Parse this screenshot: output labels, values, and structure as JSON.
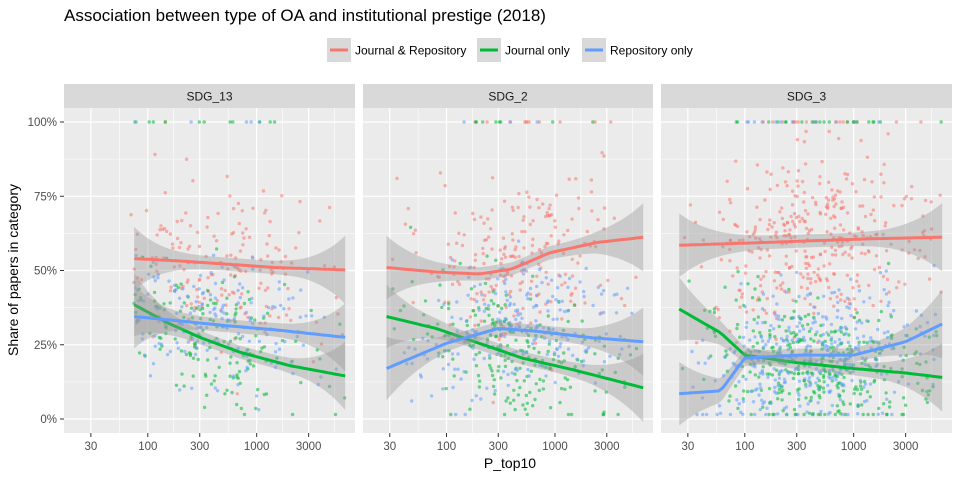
{
  "chart_data": {
    "type": "scatter",
    "title": "Association between type of OA and institutional prestige (2018)",
    "xlabel": "P_top10",
    "ylabel": "Share of papers in category",
    "x_scale": "log10",
    "x_ticks": [
      {
        "value": 30,
        "label": "30"
      },
      {
        "value": 100,
        "label": "100"
      },
      {
        "value": 300,
        "label": "300"
      },
      {
        "value": 1000,
        "label": "1000"
      },
      {
        "value": 3000,
        "label": "3000"
      }
    ],
    "y_ticks": [
      {
        "value": 0,
        "label": "0%"
      },
      {
        "value": 0.25,
        "label": "25%"
      },
      {
        "value": 0.5,
        "label": "50%"
      },
      {
        "value": 0.75,
        "label": "75%"
      },
      {
        "value": 1,
        "label": "100%"
      }
    ],
    "legend_position": "top",
    "grid": true,
    "series": [
      {
        "key": "jr",
        "name": "Journal & Repository",
        "color": "#F8766D"
      },
      {
        "key": "j",
        "name": "Journal only",
        "color": "#00BA38"
      },
      {
        "key": "r",
        "name": "Repository only",
        "color": "#619CFF"
      }
    ],
    "panels": [
      {
        "label": "SDG_13",
        "xlim": [
          17,
          8000
        ],
        "scatter_x_range": [
          70,
          6500
        ],
        "points_per_series": 170,
        "trend": {
          "jr": [
            [
              75,
              0.54
            ],
            [
              200,
              0.532
            ],
            [
              500,
              0.522
            ],
            [
              1500,
              0.51
            ],
            [
              6500,
              0.502
            ]
          ],
          "j": [
            [
              75,
              0.385
            ],
            [
              150,
              0.325
            ],
            [
              300,
              0.275
            ],
            [
              700,
              0.225
            ],
            [
              2000,
              0.18
            ],
            [
              6500,
              0.145
            ]
          ],
          "r": [
            [
              75,
              0.345
            ],
            [
              200,
              0.33
            ],
            [
              500,
              0.315
            ],
            [
              1500,
              0.3
            ],
            [
              6500,
              0.275
            ]
          ]
        }
      },
      {
        "label": "SDG_2",
        "xlim": [
          17,
          8000
        ],
        "scatter_x_range": [
          28,
          6500
        ],
        "points_per_series": 230,
        "trend": {
          "jr": [
            [
              28,
              0.51
            ],
            [
              80,
              0.495
            ],
            [
              200,
              0.488
            ],
            [
              400,
              0.505
            ],
            [
              900,
              0.56
            ],
            [
              2500,
              0.595
            ],
            [
              6500,
              0.612
            ]
          ],
          "j": [
            [
              28,
              0.345
            ],
            [
              80,
              0.305
            ],
            [
              200,
              0.255
            ],
            [
              500,
              0.205
            ],
            [
              1500,
              0.165
            ],
            [
              6500,
              0.105
            ]
          ],
          "r": [
            [
              28,
              0.17
            ],
            [
              100,
              0.255
            ],
            [
              300,
              0.305
            ],
            [
              700,
              0.295
            ],
            [
              2000,
              0.275
            ],
            [
              6500,
              0.26
            ]
          ]
        }
      },
      {
        "label": "SDG_3",
        "xlim": [
          17,
          8000
        ],
        "scatter_x_range": [
          25,
          6500
        ],
        "points_per_series": 380,
        "trend": {
          "jr": [
            [
              25,
              0.585
            ],
            [
              100,
              0.592
            ],
            [
              400,
              0.6
            ],
            [
              1500,
              0.607
            ],
            [
              6500,
              0.612
            ]
          ],
          "j": [
            [
              25,
              0.37
            ],
            [
              60,
              0.29
            ],
            [
              100,
              0.215
            ],
            [
              300,
              0.19
            ],
            [
              1000,
              0.17
            ],
            [
              3000,
              0.155
            ],
            [
              6500,
              0.14
            ]
          ],
          "r": [
            [
              25,
              0.085
            ],
            [
              60,
              0.095
            ],
            [
              100,
              0.205
            ],
            [
              300,
              0.215
            ],
            [
              1000,
              0.215
            ],
            [
              3000,
              0.26
            ],
            [
              6500,
              0.32
            ]
          ]
        }
      }
    ]
  }
}
